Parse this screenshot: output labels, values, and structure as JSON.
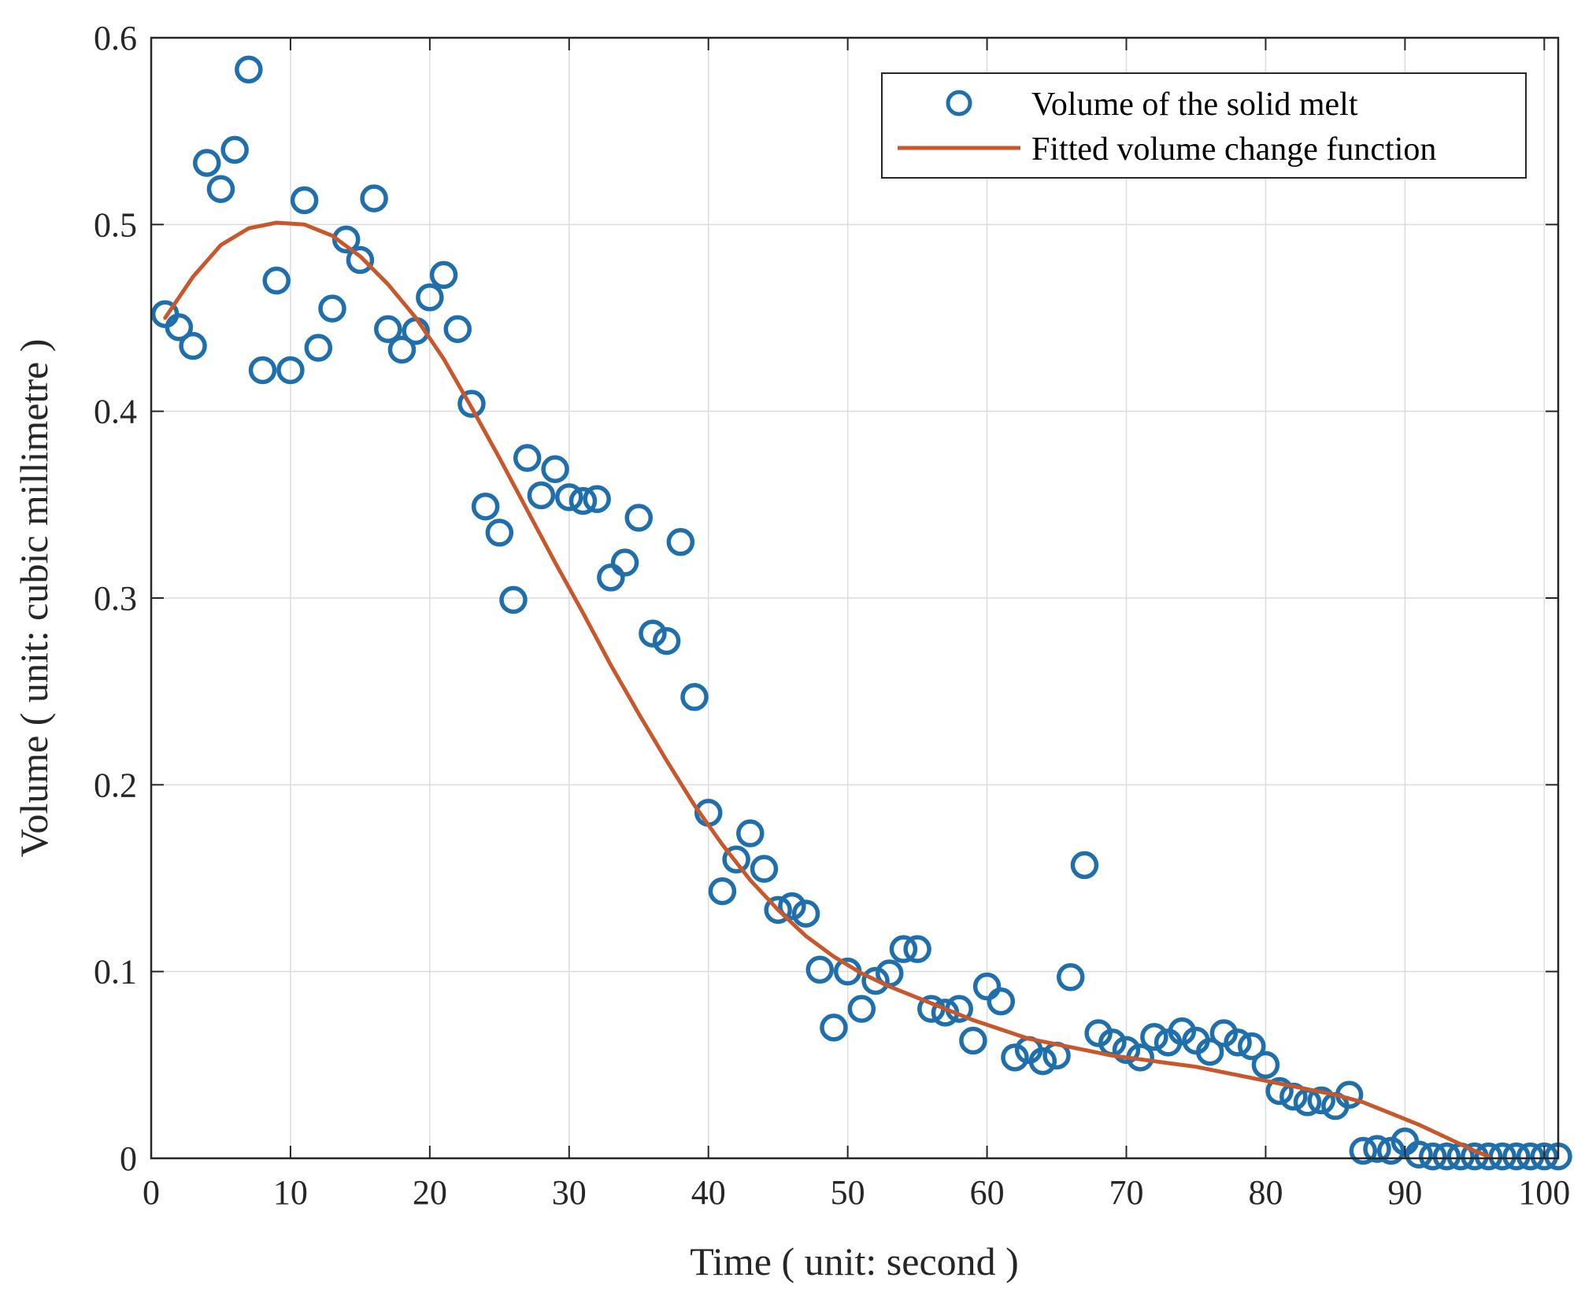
{
  "chart_data": {
    "type": "scatter",
    "title": "",
    "xlabel": "Time ( unit: second )",
    "ylabel": "Volume ( unit: cubic millimetre )",
    "xlim": [
      0,
      101
    ],
    "ylim": [
      0,
      0.6
    ],
    "xticks": [
      0,
      10,
      20,
      30,
      40,
      50,
      60,
      70,
      80,
      90,
      100
    ],
    "yticks": [
      0,
      0.1,
      0.2,
      0.3,
      0.4,
      0.5,
      0.6
    ],
    "xtick_labels": [
      "0",
      "10",
      "20",
      "30",
      "40",
      "50",
      "60",
      "70",
      "80",
      "90",
      "100"
    ],
    "ytick_labels": [
      "0",
      "0.1",
      "0.2",
      "0.3",
      "0.4",
      "0.5",
      "0.6"
    ],
    "grid": true,
    "legend_position": "top-right",
    "colors": {
      "scatter": "#1f6fad",
      "line": "#c8582b",
      "axis": "#262626"
    },
    "series": [
      {
        "name": "Volume of the solid melt",
        "kind": "scatter",
        "marker": "circle-open",
        "x": [
          1,
          2,
          3,
          4,
          5,
          6,
          7,
          8,
          9,
          10,
          11,
          12,
          13,
          14,
          15,
          16,
          17,
          18,
          19,
          20,
          21,
          22,
          23,
          24,
          25,
          26,
          27,
          28,
          29,
          30,
          31,
          32,
          33,
          34,
          35,
          36,
          37,
          38,
          39,
          40,
          41,
          42,
          43,
          44,
          45,
          46,
          47,
          48,
          49,
          50,
          51,
          52,
          53,
          54,
          55,
          56,
          57,
          58,
          59,
          60,
          61,
          62,
          63,
          64,
          65,
          66,
          67,
          68,
          69,
          70,
          71,
          72,
          73,
          74,
          75,
          76,
          77,
          78,
          79,
          80,
          81,
          82,
          83,
          84,
          85,
          86,
          87,
          88,
          89,
          90,
          91,
          92,
          93,
          94,
          95,
          96,
          97,
          98,
          99,
          100,
          101
        ],
        "y": [
          0.452,
          0.445,
          0.435,
          0.533,
          0.519,
          0.54,
          0.583,
          0.422,
          0.47,
          0.422,
          0.513,
          0.434,
          0.455,
          0.492,
          0.481,
          0.514,
          0.444,
          0.433,
          0.443,
          0.461,
          0.473,
          0.444,
          0.404,
          0.349,
          0.335,
          0.299,
          0.375,
          0.355,
          0.369,
          0.354,
          0.352,
          0.353,
          0.311,
          0.319,
          0.343,
          0.281,
          0.277,
          0.33,
          0.247,
          0.185,
          0.143,
          0.16,
          0.174,
          0.155,
          0.133,
          0.135,
          0.131,
          0.101,
          0.07,
          0.1,
          0.08,
          0.095,
          0.099,
          0.112,
          0.112,
          0.08,
          0.078,
          0.08,
          0.063,
          0.092,
          0.084,
          0.054,
          0.058,
          0.052,
          0.055,
          0.097,
          0.157,
          0.067,
          0.062,
          0.058,
          0.054,
          0.065,
          0.062,
          0.068,
          0.063,
          0.057,
          0.067,
          0.062,
          0.06,
          0.05,
          0.036,
          0.033,
          0.03,
          0.031,
          0.028,
          0.034,
          0.004,
          0.005,
          0.004,
          0.009,
          0.002,
          0.001,
          0.001,
          0.001,
          0.001,
          0.001,
          0.001,
          0.001,
          0.001,
          0.001,
          0.001
        ]
      },
      {
        "name": "Fitted volume change function",
        "kind": "line",
        "x": [
          1,
          3,
          5,
          7,
          9,
          11,
          13,
          15,
          17,
          19,
          21,
          23,
          25,
          27,
          29,
          31,
          33,
          35,
          37,
          39,
          41,
          43,
          45,
          47,
          49,
          51,
          53,
          55,
          57,
          59,
          61,
          63,
          65,
          67,
          69,
          71,
          73,
          75,
          77,
          79,
          81,
          83,
          85,
          87,
          89,
          91,
          93,
          95,
          96
        ],
        "y": [
          0.45,
          0.472,
          0.489,
          0.498,
          0.501,
          0.5,
          0.494,
          0.483,
          0.468,
          0.45,
          0.428,
          0.402,
          0.375,
          0.347,
          0.319,
          0.292,
          0.264,
          0.238,
          0.213,
          0.189,
          0.168,
          0.149,
          0.133,
          0.119,
          0.108,
          0.099,
          0.092,
          0.086,
          0.08,
          0.074,
          0.069,
          0.064,
          0.061,
          0.058,
          0.055,
          0.053,
          0.051,
          0.049,
          0.046,
          0.043,
          0.04,
          0.037,
          0.034,
          0.03,
          0.024,
          0.018,
          0.011,
          0.004,
          0.001
        ]
      }
    ]
  }
}
